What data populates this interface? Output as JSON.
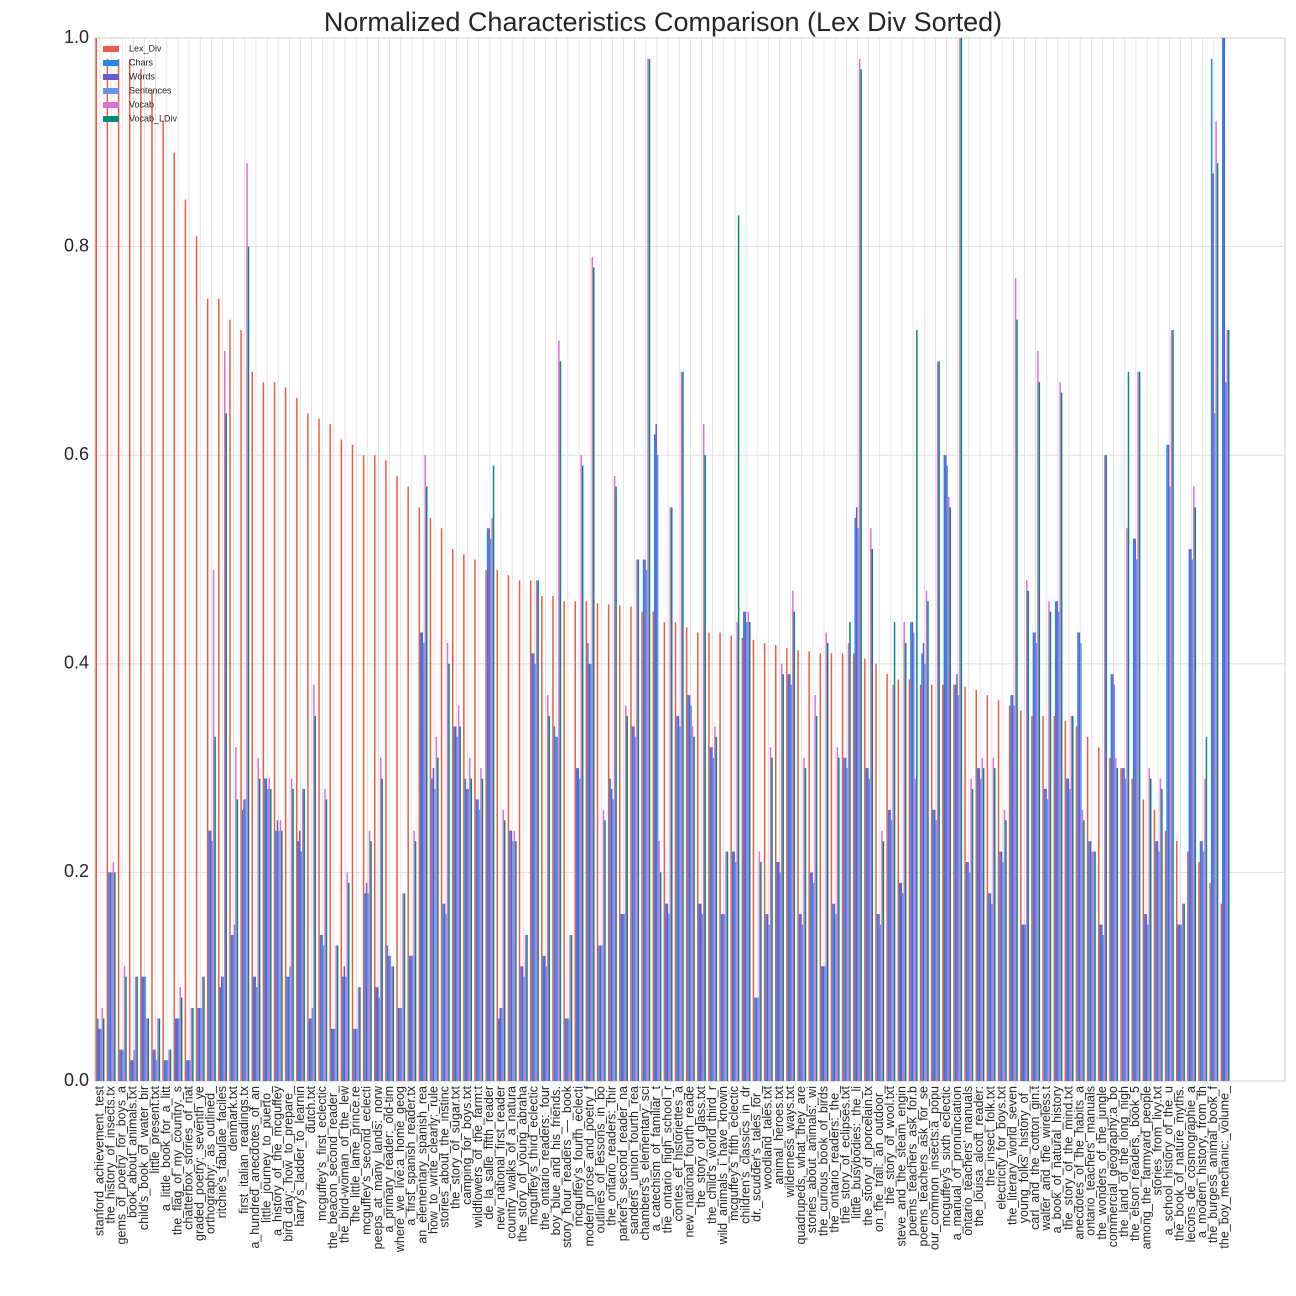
{
  "chart_data": {
    "type": "bar",
    "title": "Normalized Characteristics Comparison (Lex Div Sorted)",
    "categories": [
      "stanford_achievement_test",
      "the_history_of_insects.tx",
      "gems_of_poetry_for_boys_a",
      "book_about_animals.txt",
      "child's_book_of_water_bir",
      "little_present.txt",
      "a_little_book_for_a_litt",
      "the_flag_of_my_country._s",
      "chatterbox_stories_of_nat",
      "graded_poetry:_seventh_ye",
      "orthography:_as_outlined_",
      "ritchie's_fabulae_faciles",
      "denmark.txt",
      "first_italian_readings.tx",
      "a_hundred_anecdotes_of_an",
      "little_journey_to_puerto_",
      "a_history_of_the_mcguffey",
      "bird_day;_how_to_prepare_",
      "harry's_ladder_to_learnin",
      "dutch.txt",
      "mcguffey's_first_eclectic",
      "the_beacon_second_reader_",
      "the_bird-woman_of_the_lew",
      "the_little_lame_prince.re",
      "mcguffey's_second_eclecti",
      "peeps_at_many_lands:_norw",
      "a_primary_reader:_old-tim",
      "where_we_live:a_home_geog",
      "a_first_spanish_reader.tx",
      "an_elementary_spanish_rea",
      "how_to_write_clearly:_rule",
      "stories_about_the_instinc",
      "the_story_of_sugar.txt",
      "camping_for_boys.txt",
      "wildflowers_of_the_farm:t",
      "de_la_salle_fifth_reader",
      "new_national_first_reader",
      "country_walks_of_a_natura",
      "the_story_of_young_abraha",
      "mcguffey's_third_eclectic",
      "the_ontario_readers:_four",
      "boy_blue_and_his_friends.",
      "story_hour_readers_—_book",
      "mcguffey's_fourth_eclecti",
      "modern_prose_and_poetry_f",
      "outlines_of_lessons_in_bo",
      "the_ontario_readers:_thir",
      "parker's_second_reader_na",
      "sanders'_union_fourth_rea",
      "chambers's_elementary_sci",
      "a_catechism_of_familiar_t",
      "the_ontario_high_school_r",
      "contes_et_historiettes_a",
      "new_national_fourth_reade",
      "the_story_of_glass.txt",
      "the_child's_world_third_r",
      "wild_animals_i_have_known",
      "mcguffey's_fifth_eclectic",
      "children's_classics_in_dr",
      "dr._scudder's_tales_for_",
      "woodland_tales.txt",
      "animal_heroes.txt",
      "wilderness_ways.txt",
      "quadrupeds,_what_they_are",
      "stories_about_animals:_wi",
      "the_curious_book_of_birds",
      "the_ontario_readers:_the_",
      "the_story_of_eclipses.txt",
      "little_busybodies:_the_li",
      "the_story_of_porcelain.tx",
      "on_the_trail:_an_outdoor_",
      "the_story_of_wool.txt",
      "steve_and_the_steam_engin",
      "poems_teachers_ask_for.b",
      "poems_teachers_ask_for_se",
      "our_common_insects:a_popu",
      "mcguffey's_sixth_eclectic",
      "a_manual_of_pronunciation",
      "ontario_teachers'_manuals",
      "the_louisa_alcott_reader:",
      "the_insect_folk.txt",
      "electricity_for_boys.txt",
      "the_literary_world_seven",
      "young_folks'_history_of_",
      "carl_and_the_cotton_gin.t",
      "walter_and_the_wireless.t",
      "a_book_of_natural_history",
      "the_story_of_the_mind.txt",
      "anecdotes_of_the_habits_a",
      "ontario_teachers'_manuals",
      "the_wonders_of_the_jungle",
      "commercial_geography:a_bo",
      "the_land_of_the_long_nigh",
      "the_elson_readers,_book_5",
      "among_the_farmyard_people",
      "stories_from_livy.txt",
      "a_school_history_of_the_u",
      "the_book_of_nature_myths.",
      "lecons_de_cosmographie_a",
      "a_modern_history,_from_th",
      "the_burgess_animal_book_f",
      "the_boy_mechanic:_volume_"
    ],
    "series": [
      {
        "name": "Lex_Div",
        "color": "#f4593f",
        "values": [
          1.0,
          0.98,
          0.98,
          0.98,
          0.97,
          0.95,
          0.92,
          0.89,
          0.845,
          0.81,
          0.75,
          0.75,
          0.73,
          0.72,
          0.68,
          0.67,
          0.67,
          0.665,
          0.655,
          0.64,
          0.635,
          0.63,
          0.615,
          0.61,
          0.6,
          0.6,
          0.595,
          0.58,
          0.57,
          0.55,
          0.54,
          0.53,
          0.51,
          0.505,
          0.5,
          0.49,
          0.49,
          0.485,
          0.48,
          0.48,
          0.465,
          0.465,
          0.46,
          0.46,
          0.46,
          0.458,
          0.457,
          0.456,
          0.455,
          0.45,
          0.45,
          0.44,
          0.44,
          0.435,
          0.43,
          0.43,
          0.43,
          0.427,
          0.425,
          0.423,
          0.42,
          0.418,
          0.415,
          0.413,
          0.412,
          0.41,
          0.41,
          0.41,
          0.41,
          0.405,
          0.4,
          0.39,
          0.385,
          0.385,
          0.38,
          0.38,
          0.38,
          0.38,
          0.378,
          0.375,
          0.37,
          0.365,
          0.36,
          0.355,
          0.35,
          0.35,
          0.35,
          0.345,
          0.34,
          0.33,
          0.32,
          0.31,
          0.3,
          0.29,
          0.27,
          0.26,
          0.24,
          0.23,
          0.22,
          0.21,
          0.19,
          0.17
        ]
      },
      {
        "name": "Chars",
        "color": "#1e88f0",
        "values": [
          0.06,
          0.2,
          0.03,
          0.02,
          0.1,
          0.03,
          0.02,
          0.06,
          0.02,
          0.07,
          0.24,
          0.09,
          0.14,
          0.26,
          0.1,
          0.29,
          0.24,
          0.1,
          0.23,
          0.06,
          0.14,
          0.05,
          0.1,
          0.05,
          0.18,
          0.09,
          0.13,
          0.07,
          0.12,
          0.43,
          0.29,
          0.17,
          0.34,
          0.29,
          0.27,
          0.53,
          0.06,
          0.24,
          0.11,
          0.41,
          0.12,
          0.34,
          0.06,
          0.3,
          0.42,
          0.13,
          0.29,
          0.16,
          0.34,
          0.5,
          0.62,
          0.17,
          0.35,
          0.37,
          0.17,
          0.32,
          0.16,
          0.22,
          0.45,
          0.08,
          0.16,
          0.21,
          0.39,
          0.16,
          0.2,
          0.11,
          0.17,
          0.31,
          0.54,
          0.3,
          0.16,
          0.26,
          0.19,
          0.44,
          0.41,
          0.26,
          0.6,
          0.38,
          0.21,
          0.3,
          0.18,
          0.22,
          0.37,
          0.15,
          0.43,
          0.28,
          0.46,
          0.29,
          0.43,
          0.23,
          0.15,
          0.39,
          0.3,
          0.52,
          0.16,
          0.23,
          0.61,
          0.15,
          0.51,
          0.23,
          0.98,
          1.0
        ]
      },
      {
        "name": "Words",
        "color": "#6a5acd",
        "values": [
          0.05,
          0.2,
          0.03,
          0.02,
          0.1,
          0.03,
          0.02,
          0.06,
          0.02,
          0.07,
          0.24,
          0.1,
          0.14,
          0.27,
          0.1,
          0.29,
          0.25,
          0.1,
          0.24,
          0.06,
          0.14,
          0.05,
          0.11,
          0.05,
          0.19,
          0.09,
          0.12,
          0.07,
          0.12,
          0.43,
          0.3,
          0.17,
          0.34,
          0.28,
          0.27,
          0.53,
          0.07,
          0.24,
          0.11,
          0.41,
          0.12,
          0.33,
          0.06,
          0.3,
          0.4,
          0.13,
          0.28,
          0.16,
          0.34,
          0.5,
          0.63,
          0.17,
          0.35,
          0.37,
          0.17,
          0.32,
          0.16,
          0.22,
          0.45,
          0.08,
          0.16,
          0.21,
          0.39,
          0.16,
          0.2,
          0.11,
          0.17,
          0.31,
          0.55,
          0.3,
          0.16,
          0.26,
          0.19,
          0.44,
          0.42,
          0.26,
          0.6,
          0.39,
          0.21,
          0.3,
          0.18,
          0.22,
          0.37,
          0.15,
          0.43,
          0.28,
          0.46,
          0.29,
          0.43,
          0.23,
          0.15,
          0.39,
          0.3,
          0.52,
          0.16,
          0.23,
          0.61,
          0.15,
          0.51,
          0.23,
          0.87,
          1.0
        ]
      },
      {
        "name": "Sentences",
        "color": "#6495ed",
        "values": [
          0.05,
          0.2,
          0.03,
          0.03,
          0.1,
          0.02,
          0.02,
          0.06,
          0.02,
          0.07,
          0.23,
          0.1,
          0.15,
          0.27,
          0.09,
          0.28,
          0.24,
          0.11,
          0.22,
          0.07,
          0.13,
          0.05,
          0.1,
          0.05,
          0.18,
          0.08,
          0.12,
          0.07,
          0.12,
          0.42,
          0.28,
          0.16,
          0.33,
          0.28,
          0.26,
          0.52,
          0.07,
          0.23,
          0.1,
          0.4,
          0.11,
          0.33,
          0.06,
          0.29,
          0.4,
          0.13,
          0.27,
          0.16,
          0.33,
          0.49,
          0.6,
          0.16,
          0.34,
          0.36,
          0.16,
          0.31,
          0.16,
          0.21,
          0.44,
          0.08,
          0.15,
          0.2,
          0.38,
          0.15,
          0.19,
          0.11,
          0.16,
          0.3,
          0.53,
          0.29,
          0.15,
          0.25,
          0.18,
          0.43,
          0.4,
          0.25,
          0.59,
          0.37,
          0.2,
          0.29,
          0.17,
          0.21,
          0.36,
          0.15,
          0.42,
          0.27,
          0.45,
          0.28,
          0.42,
          0.22,
          0.14,
          0.38,
          0.29,
          0.5,
          0.15,
          0.22,
          0.57,
          0.15,
          0.5,
          0.22,
          0.64,
          0.67
        ]
      },
      {
        "name": "Vocab",
        "color": "#da70d6",
        "values": [
          0.07,
          0.21,
          0.11,
          0.1,
          0.06,
          0.06,
          0.03,
          0.09,
          0.07,
          0.1,
          0.49,
          0.7,
          0.32,
          0.88,
          0.31,
          0.29,
          0.25,
          0.29,
          0.28,
          0.38,
          0.28,
          0.13,
          0.2,
          0.09,
          0.24,
          0.31,
          0.11,
          0.18,
          0.24,
          0.6,
          0.33,
          0.42,
          0.36,
          0.31,
          0.3,
          0.54,
          0.26,
          0.24,
          0.14,
          0.48,
          0.37,
          0.71,
          0.14,
          0.6,
          0.79,
          0.26,
          0.58,
          0.36,
          0.5,
          0.98,
          0.23,
          0.55,
          0.68,
          0.34,
          0.63,
          0.34,
          0.22,
          0.44,
          0.45,
          0.22,
          0.32,
          0.4,
          0.47,
          0.31,
          0.37,
          0.43,
          0.32,
          0.42,
          0.98,
          0.53,
          0.24,
          0.38,
          0.44,
          0.29,
          0.47,
          0.69,
          0.56,
          1.0,
          0.29,
          0.31,
          0.31,
          0.26,
          0.77,
          0.48,
          0.7,
          0.46,
          0.67,
          0.35,
          0.26,
          0.22,
          0.6,
          0.31,
          0.53,
          0.68,
          0.3,
          0.29,
          0.72,
          0.17,
          0.57,
          0.29,
          0.92,
          0.72
        ]
      },
      {
        "name": "Vocab_LDiv",
        "color": "#008b7a",
        "values": [
          0.06,
          0.2,
          0.1,
          0.1,
          0.06,
          0.06,
          0.03,
          0.08,
          0.07,
          0.1,
          0.33,
          0.64,
          0.27,
          0.8,
          0.29,
          0.28,
          0.24,
          0.28,
          0.28,
          0.35,
          0.27,
          0.13,
          0.19,
          0.09,
          0.23,
          0.29,
          0.11,
          0.18,
          0.23,
          0.57,
          0.31,
          0.4,
          0.34,
          0.29,
          0.29,
          0.59,
          0.25,
          0.23,
          0.14,
          0.48,
          0.35,
          0.69,
          0.14,
          0.59,
          0.78,
          0.25,
          0.57,
          0.35,
          0.5,
          0.98,
          0.2,
          0.55,
          0.68,
          0.33,
          0.6,
          0.33,
          0.22,
          0.83,
          0.44,
          0.21,
          0.31,
          0.39,
          0.45,
          0.3,
          0.35,
          0.42,
          0.31,
          0.44,
          0.97,
          0.51,
          0.23,
          0.44,
          0.42,
          0.72,
          0.46,
          0.69,
          0.55,
          1.0,
          0.28,
          0.3,
          0.3,
          0.25,
          0.73,
          0.47,
          0.67,
          0.45,
          0.66,
          0.35,
          0.25,
          0.22,
          0.6,
          0.3,
          0.68,
          0.68,
          0.29,
          0.28,
          0.72,
          0.17,
          0.55,
          0.33,
          0.88,
          0.72
        ]
      }
    ],
    "ylim": [
      0,
      1
    ],
    "yticks": [
      {
        "value": 0,
        "label": "0.0"
      },
      0.2,
      0.4,
      0.6,
      0.8,
      {
        "value": 1,
        "label": "1.0"
      }
    ],
    "grid": true,
    "legend": "upper left"
  }
}
